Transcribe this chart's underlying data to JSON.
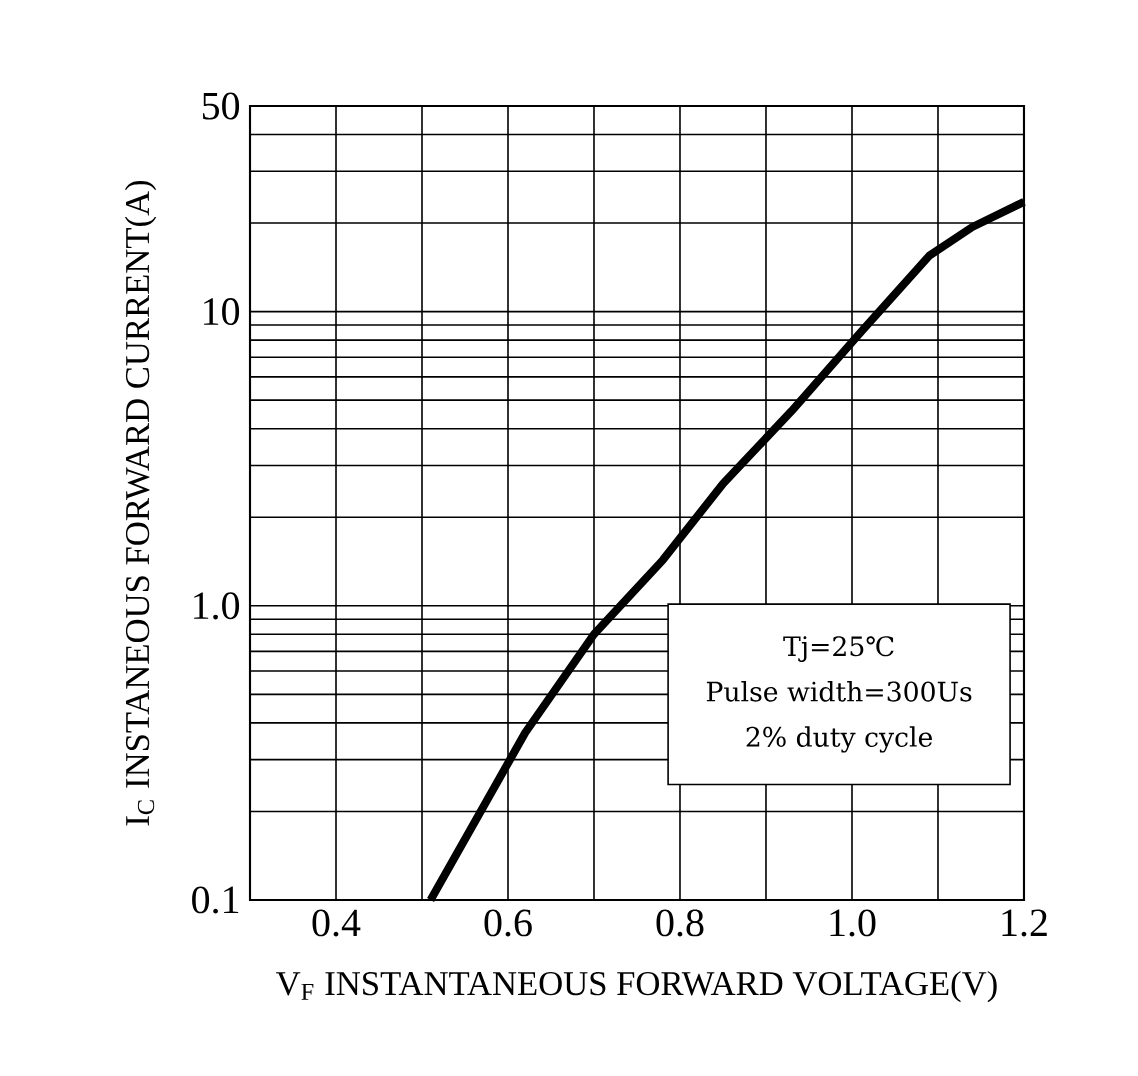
{
  "chart_data": {
    "type": "line",
    "xlabel": "V$_{F}$ INSTANTANEOUS FORWARD VOLTAGE(V)",
    "ylabel": "I$_{C}$ INSTANEOUS   FORWARD CURRENT(A)",
    "x": [
      0.51,
      0.62,
      0.7,
      0.78,
      0.85,
      0.93,
      1.01,
      1.09,
      1.14,
      1.2
    ],
    "series": [
      {
        "color": "#000000",
        "values": [
          0.1,
          0.37,
          0.8,
          1.43,
          2.6,
          4.6,
          8.5,
          15.5,
          19.4,
          23.6
        ]
      }
    ],
    "xlim": [
      0.3,
      1.2
    ],
    "ylim": [
      0.1,
      50
    ],
    "xticks": [
      {
        "value": 0.3,
        "label": null
      },
      0.4,
      {
        "value": 0.5,
        "label": null
      },
      0.6,
      {
        "value": 0.7,
        "label": null
      },
      0.8,
      {
        "value": 0.9,
        "label": null
      },
      {
        "value": 1.0,
        "label": "1.0"
      },
      {
        "value": 1.1,
        "label": null
      },
      1.2
    ],
    "yticks": [
      0.1,
      {
        "value": 1,
        "label": "1.0"
      },
      10,
      50
    ],
    "log": "y",
    "grid": true,
    "marker": "none",
    "line_style": "solid",
    "annotations": [
      "Tj=25℃",
      "Pulse width=300Us",
      "2% duty cycle"
    ]
  }
}
